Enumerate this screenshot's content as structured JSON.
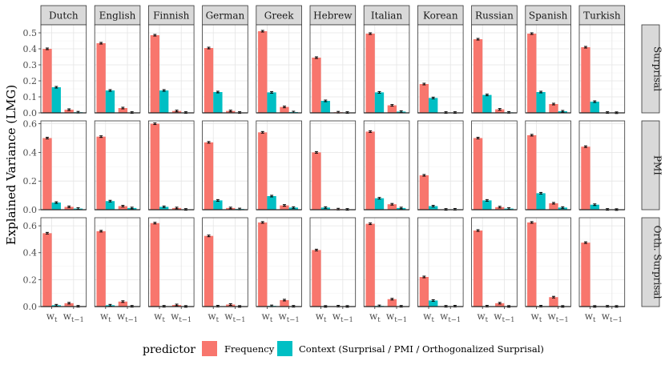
{
  "chart_data": {
    "type": "bar",
    "ylabel": "Explained Variance (LMG)",
    "languages": [
      "Dutch",
      "English",
      "Finnish",
      "German",
      "Greek",
      "Hebrew",
      "Italian",
      "Korean",
      "Russian",
      "Spanish",
      "Turkish"
    ],
    "x_categories": [
      "w_t",
      "w_t-1"
    ],
    "x_tick_labels": [
      {
        "base": "w",
        "sub": "t"
      },
      {
        "base": "w",
        "sub": "t−1"
      }
    ],
    "legend": {
      "title": "predictor",
      "placement": "bottom",
      "entries": [
        {
          "key": "frequency",
          "label": "Frequency",
          "color": "#F8766D"
        },
        {
          "key": "context",
          "label": "Context (Surprisal / PMI / Orthogonalized Surprisal)",
          "color": "#00BFC4"
        }
      ]
    },
    "rows": [
      {
        "label": "Surprisal",
        "ylim": [
          0,
          0.55
        ],
        "yticks": [
          0.0,
          0.1,
          0.2,
          0.3,
          0.4,
          0.5
        ],
        "ytick_labels": [
          "0.0",
          "0.1",
          "0.2",
          "0.3",
          "0.4",
          "0.5"
        ],
        "frequency": {
          "w_t": [
            0.4,
            0.435,
            0.485,
            0.405,
            0.51,
            0.345,
            0.495,
            0.18,
            0.46,
            0.495,
            0.41
          ],
          "w_t-1": [
            0.02,
            0.03,
            0.012,
            0.012,
            0.037,
            0.004,
            0.047,
            0.002,
            0.022,
            0.055,
            0.002
          ]
        },
        "context": {
          "w_t": [
            0.16,
            0.14,
            0.14,
            0.13,
            0.128,
            0.075,
            0.128,
            0.093,
            0.112,
            0.13,
            0.07
          ],
          "w_t-1": [
            0.004,
            0.002,
            0.002,
            0.002,
            0.005,
            0.002,
            0.008,
            0.002,
            0.003,
            0.01,
            0.001
          ]
        }
      },
      {
        "label": "PMI",
        "ylim": [
          0,
          0.62
        ],
        "yticks": [
          0.0,
          0.2,
          0.4,
          0.6
        ],
        "ytick_labels": [
          "0.0",
          "0.2",
          "0.4",
          "0.6"
        ],
        "frequency": {
          "w_t": [
            0.5,
            0.51,
            0.6,
            0.47,
            0.54,
            0.4,
            0.545,
            0.24,
            0.5,
            0.52,
            0.44
          ],
          "w_t-1": [
            0.02,
            0.025,
            0.012,
            0.012,
            0.03,
            0.004,
            0.038,
            0.002,
            0.018,
            0.045,
            0.002
          ]
        },
        "context": {
          "w_t": [
            0.05,
            0.06,
            0.02,
            0.065,
            0.095,
            0.015,
            0.08,
            0.025,
            0.065,
            0.115,
            0.035
          ],
          "w_t-1": [
            0.008,
            0.012,
            0.002,
            0.005,
            0.015,
            0.002,
            0.012,
            0.003,
            0.008,
            0.015,
            0.001
          ]
        }
      },
      {
        "label": "Orth. Surprisal",
        "ylim": [
          0,
          0.66
        ],
        "yticks": [
          0.0,
          0.2,
          0.4,
          0.6
        ],
        "ytick_labels": [
          "0.0",
          "0.2",
          "0.4",
          "0.6"
        ],
        "frequency": {
          "w_t": [
            0.545,
            0.56,
            0.62,
            0.525,
            0.625,
            0.42,
            0.615,
            0.22,
            0.565,
            0.625,
            0.475
          ],
          "w_t-1": [
            0.025,
            0.037,
            0.012,
            0.015,
            0.048,
            0.003,
            0.055,
            0.002,
            0.025,
            0.07,
            0.002
          ]
        },
        "context": {
          "w_t": [
            0.01,
            0.01,
            0.002,
            0.003,
            0.005,
            0.001,
            0.005,
            0.045,
            0.003,
            0.003,
            0.001
          ],
          "w_t-1": [
            0.002,
            0.002,
            0.001,
            0.001,
            0.002,
            0.001,
            0.002,
            0.003,
            0.001,
            0.001,
            0.001
          ]
        }
      }
    ]
  }
}
